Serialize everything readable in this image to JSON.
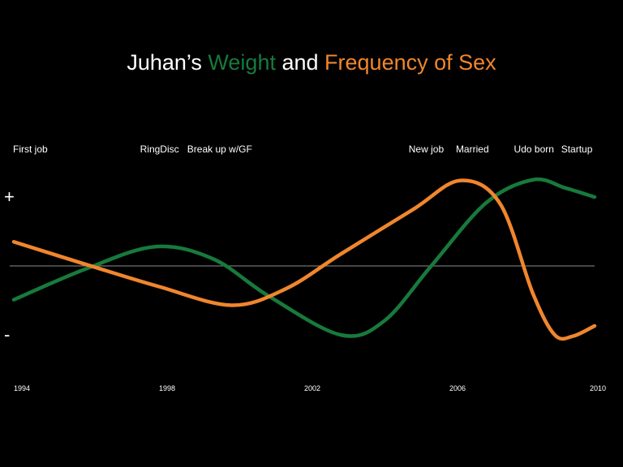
{
  "title": {
    "prefix": "Juhan’s ",
    "series_a": "Weight",
    "middle": " and ",
    "series_b": "Frequency of Sex"
  },
  "colors": {
    "background": "#000000",
    "weight": "#177a3c",
    "sex": "#f0862d",
    "baseline": "#8c8c8c",
    "text": "#ffffff"
  },
  "chart_data": {
    "type": "line",
    "title": "Juhan’s Weight and Frequency of Sex",
    "xlabel": "",
    "ylabel": "",
    "y_top_label": "+",
    "y_bottom_label": "-",
    "xlim": [
      1994,
      2010
    ],
    "ylim": [
      -1,
      1
    ],
    "x_ticks": [
      1994,
      1998,
      2002,
      2006,
      2010
    ],
    "x_tick_labels": [
      "1994",
      "1998",
      "2002",
      "2006",
      "2010"
    ],
    "events": [
      {
        "label": "First job",
        "x": 1994
      },
      {
        "label": "RingDisc",
        "x": 1997.5
      },
      {
        "label": "Break up w/GF",
        "x": 1998.8
      },
      {
        "label": "New job",
        "x": 2004.9
      },
      {
        "label": "Married",
        "x": 2006.2
      },
      {
        "label": "Udo born",
        "x": 2007.8
      },
      {
        "label": "Startup",
        "x": 2009.1
      }
    ],
    "series": [
      {
        "name": "Weight",
        "color": "#177a3c",
        "x": [
          1994,
          1996,
          1997.9,
          1999.5,
          2001,
          2003,
          2004.2,
          2005.5,
          2007,
          2008.3,
          2009.2,
          2010
        ],
        "values": [
          -0.49,
          -0.04,
          0.28,
          0.1,
          -0.43,
          -1.0,
          -0.8,
          0.0,
          0.91,
          1.25,
          1.13,
          1.0
        ]
      },
      {
        "name": "Frequency of Sex",
        "color": "#f0862d",
        "x": [
          1994,
          1996,
          1998,
          2000,
          2001.5,
          2003,
          2005,
          2006.3,
          2007.4,
          2008.3,
          2008.9,
          2009.4,
          2010
        ],
        "values": [
          0.35,
          0.02,
          -0.3,
          -0.57,
          -0.33,
          0.17,
          0.82,
          1.24,
          0.9,
          -0.4,
          -1.0,
          -1.02,
          -0.87
        ]
      }
    ]
  }
}
